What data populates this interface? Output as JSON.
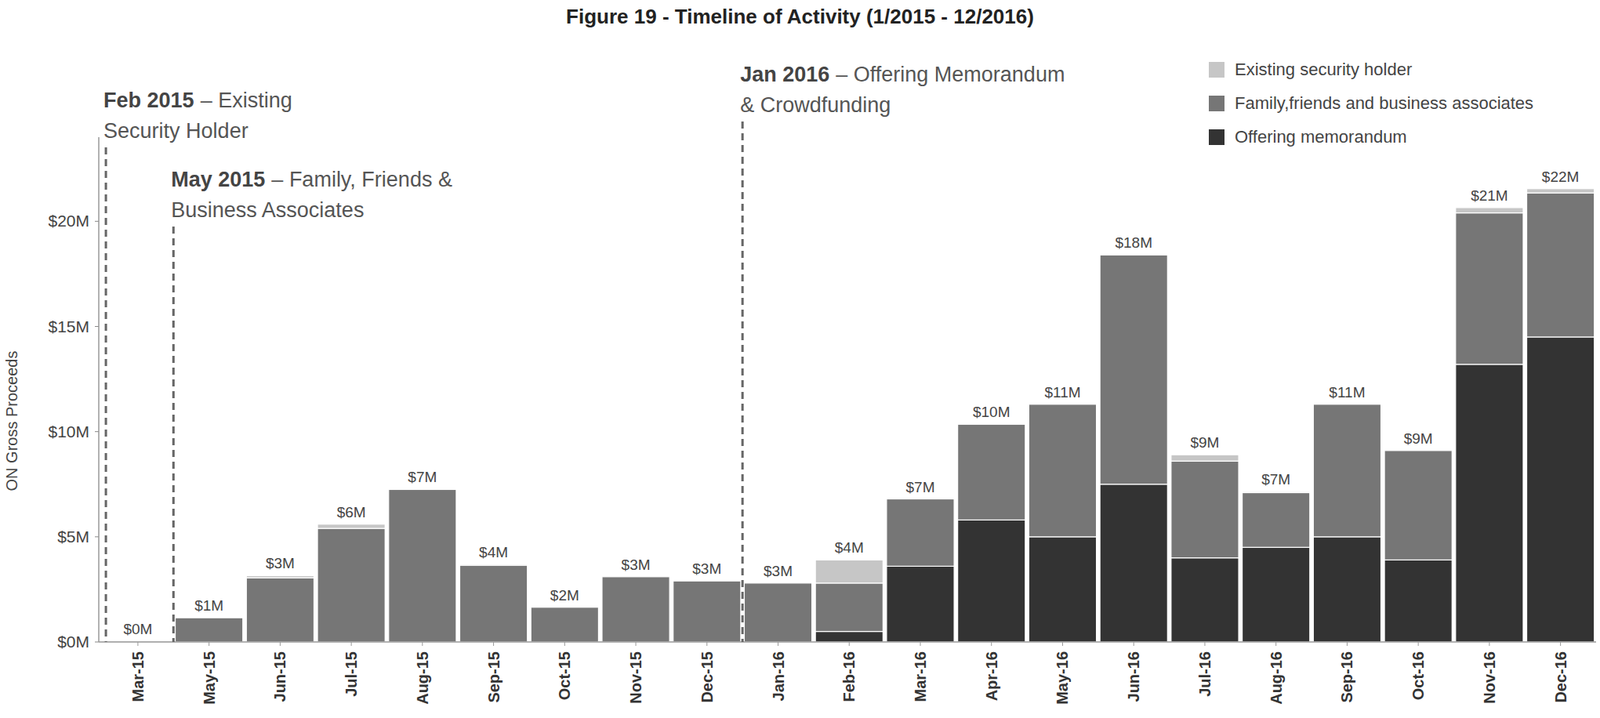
{
  "chart_data": {
    "type": "bar",
    "stacked": true,
    "title": "Figure 19 - Timeline of Activity (1/2015 - 12/2016)",
    "y_label": "ON Gross Proceeds",
    "categories": [
      "Mar-15",
      "May-15",
      "Jun-15",
      "Jul-15",
      "Aug-15",
      "Sep-15",
      "Oct-15",
      "Nov-15",
      "Dec-15",
      "Jan-16",
      "Feb-16",
      "Mar-16",
      "Apr-16",
      "May-16",
      "Jun-16",
      "Jul-16",
      "Aug-16",
      "Sep-16",
      "Oct-16",
      "Nov-16",
      "Dec-16"
    ],
    "series": [
      {
        "name": "Existing security holder",
        "color": "#c6c6c6",
        "values": [
          0,
          0,
          0.1,
          0.2,
          0,
          0.05,
          0,
          0,
          0,
          0,
          1.1,
          0,
          0,
          0,
          0,
          0.3,
          0.05,
          0,
          0,
          0.25,
          0.2
        ]
      },
      {
        "name": "Family,friends and business associates",
        "color": "#767676",
        "values": [
          0.05,
          1.15,
          3.05,
          5.4,
          7.25,
          3.65,
          1.65,
          3.1,
          2.9,
          2.8,
          2.3,
          3.2,
          4.55,
          6.3,
          10.9,
          4.6,
          2.6,
          6.3,
          5.2,
          7.2,
          6.85
        ]
      },
      {
        "name": "Offering memorandum",
        "color": "#333333",
        "values": [
          0,
          0,
          0,
          0,
          0,
          0,
          0,
          0,
          0,
          0,
          0.5,
          3.6,
          5.8,
          5.0,
          7.5,
          4.0,
          4.5,
          5.0,
          3.9,
          13.2,
          14.5
        ]
      }
    ],
    "total_labels": [
      "$0M",
      "$1M",
      "$3M",
      "$6M",
      "$7M",
      "$4M",
      "$2M",
      "$3M",
      "$3M",
      "$3M",
      "$4M",
      "$7M",
      "$10M",
      "$11M",
      "$18M",
      "$9M",
      "$7M",
      "$11M",
      "$9M",
      "$21M",
      "$22M"
    ],
    "ylim": [
      0,
      24
    ],
    "yticks": [
      {
        "value": 0,
        "label": "$0M"
      },
      {
        "value": 5,
        "label": "$5M"
      },
      {
        "value": 10,
        "label": "$10M"
      },
      {
        "value": 15,
        "label": "$15M"
      },
      {
        "value": 20,
        "label": "$20M"
      }
    ],
    "grid": false,
    "legend": "top-right",
    "annotations": [
      {
        "x": -0.45,
        "heading": "Feb 2015",
        "text": [
          "– Existing",
          "Security Holder"
        ]
      },
      {
        "x": 0.5,
        "heading": "May 2015",
        "text": [
          "– Family, Friends &",
          "Business Associates"
        ]
      },
      {
        "x": 8.5,
        "heading": "Jan 2016",
        "text": [
          "– Offering Memorandum",
          "& Crowdfunding"
        ]
      }
    ]
  }
}
